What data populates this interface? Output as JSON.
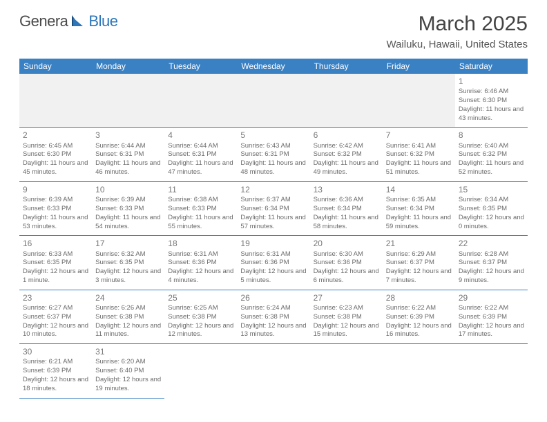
{
  "logo": {
    "text1": "Genera",
    "text2": "Blue"
  },
  "title": "March 2025",
  "location": "Wailuku, Hawaii, United States",
  "colors": {
    "header": "#3a81c4",
    "rule": "#3a81c4",
    "logoBlue": "#2d76ba",
    "logoGray": "#4a4a4a",
    "text": "#6a6a6a",
    "blankRow": "#f1f1f1"
  },
  "weekdays": [
    "Sunday",
    "Monday",
    "Tuesday",
    "Wednesday",
    "Thursday",
    "Friday",
    "Saturday"
  ],
  "weeks": [
    [
      null,
      null,
      null,
      null,
      null,
      null,
      {
        "d": "1",
        "sr": "Sunrise: 6:46 AM",
        "ss": "Sunset: 6:30 PM",
        "dl": "Daylight: 11 hours and 43 minutes."
      }
    ],
    [
      {
        "d": "2",
        "sr": "Sunrise: 6:45 AM",
        "ss": "Sunset: 6:30 PM",
        "dl": "Daylight: 11 hours and 45 minutes."
      },
      {
        "d": "3",
        "sr": "Sunrise: 6:44 AM",
        "ss": "Sunset: 6:31 PM",
        "dl": "Daylight: 11 hours and 46 minutes."
      },
      {
        "d": "4",
        "sr": "Sunrise: 6:44 AM",
        "ss": "Sunset: 6:31 PM",
        "dl": "Daylight: 11 hours and 47 minutes."
      },
      {
        "d": "5",
        "sr": "Sunrise: 6:43 AM",
        "ss": "Sunset: 6:31 PM",
        "dl": "Daylight: 11 hours and 48 minutes."
      },
      {
        "d": "6",
        "sr": "Sunrise: 6:42 AM",
        "ss": "Sunset: 6:32 PM",
        "dl": "Daylight: 11 hours and 49 minutes."
      },
      {
        "d": "7",
        "sr": "Sunrise: 6:41 AM",
        "ss": "Sunset: 6:32 PM",
        "dl": "Daylight: 11 hours and 51 minutes."
      },
      {
        "d": "8",
        "sr": "Sunrise: 6:40 AM",
        "ss": "Sunset: 6:32 PM",
        "dl": "Daylight: 11 hours and 52 minutes."
      }
    ],
    [
      {
        "d": "9",
        "sr": "Sunrise: 6:39 AM",
        "ss": "Sunset: 6:33 PM",
        "dl": "Daylight: 11 hours and 53 minutes."
      },
      {
        "d": "10",
        "sr": "Sunrise: 6:39 AM",
        "ss": "Sunset: 6:33 PM",
        "dl": "Daylight: 11 hours and 54 minutes."
      },
      {
        "d": "11",
        "sr": "Sunrise: 6:38 AM",
        "ss": "Sunset: 6:33 PM",
        "dl": "Daylight: 11 hours and 55 minutes."
      },
      {
        "d": "12",
        "sr": "Sunrise: 6:37 AM",
        "ss": "Sunset: 6:34 PM",
        "dl": "Daylight: 11 hours and 57 minutes."
      },
      {
        "d": "13",
        "sr": "Sunrise: 6:36 AM",
        "ss": "Sunset: 6:34 PM",
        "dl": "Daylight: 11 hours and 58 minutes."
      },
      {
        "d": "14",
        "sr": "Sunrise: 6:35 AM",
        "ss": "Sunset: 6:34 PM",
        "dl": "Daylight: 11 hours and 59 minutes."
      },
      {
        "d": "15",
        "sr": "Sunrise: 6:34 AM",
        "ss": "Sunset: 6:35 PM",
        "dl": "Daylight: 12 hours and 0 minutes."
      }
    ],
    [
      {
        "d": "16",
        "sr": "Sunrise: 6:33 AM",
        "ss": "Sunset: 6:35 PM",
        "dl": "Daylight: 12 hours and 1 minute."
      },
      {
        "d": "17",
        "sr": "Sunrise: 6:32 AM",
        "ss": "Sunset: 6:35 PM",
        "dl": "Daylight: 12 hours and 3 minutes."
      },
      {
        "d": "18",
        "sr": "Sunrise: 6:31 AM",
        "ss": "Sunset: 6:36 PM",
        "dl": "Daylight: 12 hours and 4 minutes."
      },
      {
        "d": "19",
        "sr": "Sunrise: 6:31 AM",
        "ss": "Sunset: 6:36 PM",
        "dl": "Daylight: 12 hours and 5 minutes."
      },
      {
        "d": "20",
        "sr": "Sunrise: 6:30 AM",
        "ss": "Sunset: 6:36 PM",
        "dl": "Daylight: 12 hours and 6 minutes."
      },
      {
        "d": "21",
        "sr": "Sunrise: 6:29 AM",
        "ss": "Sunset: 6:37 PM",
        "dl": "Daylight: 12 hours and 7 minutes."
      },
      {
        "d": "22",
        "sr": "Sunrise: 6:28 AM",
        "ss": "Sunset: 6:37 PM",
        "dl": "Daylight: 12 hours and 9 minutes."
      }
    ],
    [
      {
        "d": "23",
        "sr": "Sunrise: 6:27 AM",
        "ss": "Sunset: 6:37 PM",
        "dl": "Daylight: 12 hours and 10 minutes."
      },
      {
        "d": "24",
        "sr": "Sunrise: 6:26 AM",
        "ss": "Sunset: 6:38 PM",
        "dl": "Daylight: 12 hours and 11 minutes."
      },
      {
        "d": "25",
        "sr": "Sunrise: 6:25 AM",
        "ss": "Sunset: 6:38 PM",
        "dl": "Daylight: 12 hours and 12 minutes."
      },
      {
        "d": "26",
        "sr": "Sunrise: 6:24 AM",
        "ss": "Sunset: 6:38 PM",
        "dl": "Daylight: 12 hours and 13 minutes."
      },
      {
        "d": "27",
        "sr": "Sunrise: 6:23 AM",
        "ss": "Sunset: 6:38 PM",
        "dl": "Daylight: 12 hours and 15 minutes."
      },
      {
        "d": "28",
        "sr": "Sunrise: 6:22 AM",
        "ss": "Sunset: 6:39 PM",
        "dl": "Daylight: 12 hours and 16 minutes."
      },
      {
        "d": "29",
        "sr": "Sunrise: 6:22 AM",
        "ss": "Sunset: 6:39 PM",
        "dl": "Daylight: 12 hours and 17 minutes."
      }
    ],
    [
      {
        "d": "30",
        "sr": "Sunrise: 6:21 AM",
        "ss": "Sunset: 6:39 PM",
        "dl": "Daylight: 12 hours and 18 minutes."
      },
      {
        "d": "31",
        "sr": "Sunrise: 6:20 AM",
        "ss": "Sunset: 6:40 PM",
        "dl": "Daylight: 12 hours and 19 minutes."
      },
      null,
      null,
      null,
      null,
      null
    ]
  ]
}
